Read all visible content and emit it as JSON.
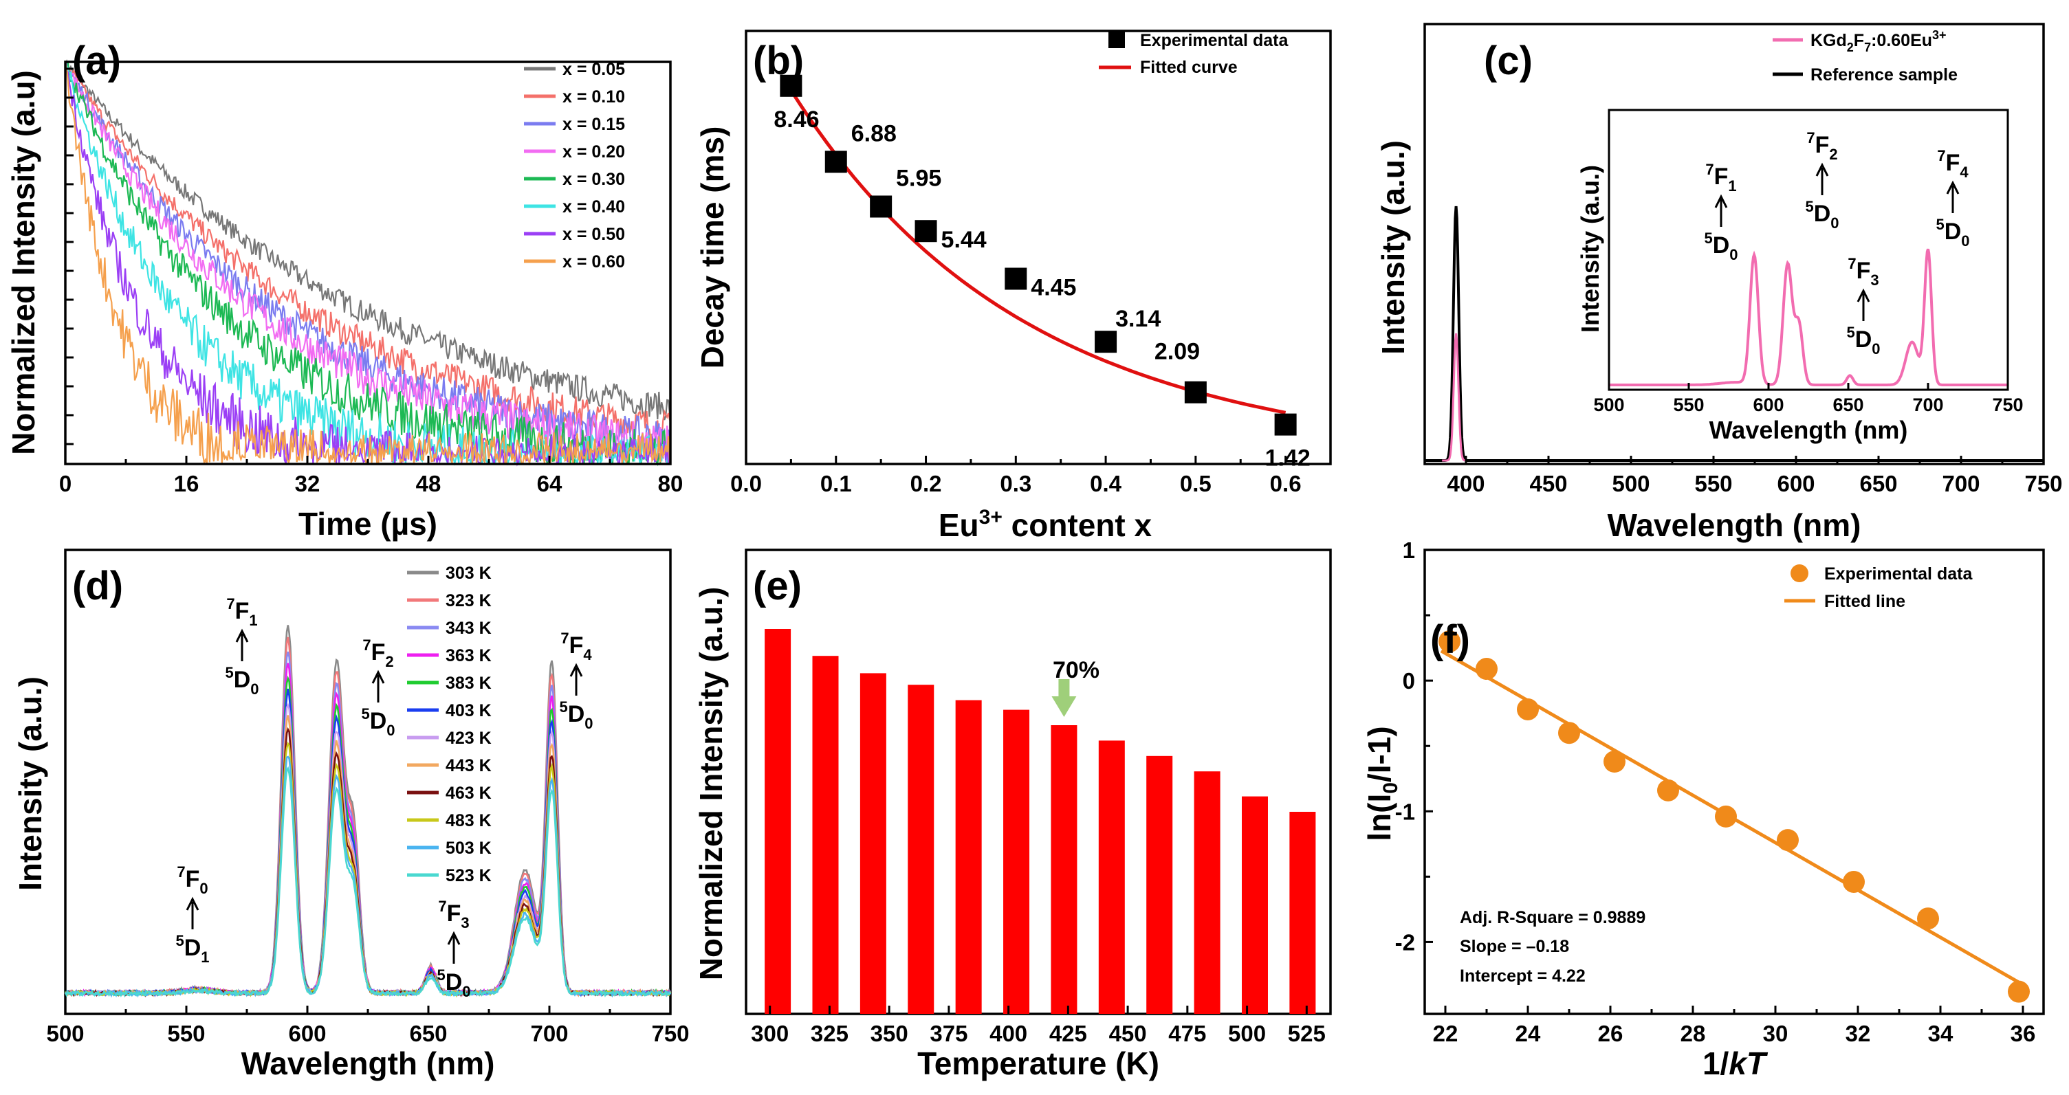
{
  "chart_data": [
    {
      "panel": "(a)",
      "type": "line",
      "xlabel": "Time (µs)",
      "ylabel": "Normalized Intensity (a.u)",
      "xlim": [
        0,
        80
      ],
      "xticks": [
        "0",
        "16",
        "32",
        "48",
        "64",
        "80"
      ],
      "series": [
        {
          "name": "x = 0.05",
          "color": "#777777",
          "decay_ms": 8.46
        },
        {
          "name": "x = 0.10",
          "color": "#f4706a",
          "decay_ms": 6.88
        },
        {
          "name": "x = 0.15",
          "color": "#7b7cf0",
          "decay_ms": 5.95
        },
        {
          "name": "x = 0.20",
          "color": "#f26cf2",
          "decay_ms": 5.44
        },
        {
          "name": "x = 0.30",
          "color": "#1db954",
          "decay_ms": 4.45
        },
        {
          "name": "x = 0.40",
          "color": "#3ee4e4",
          "decay_ms": 3.14
        },
        {
          "name": "x = 0.50",
          "color": "#9b3ff5",
          "decay_ms": 2.09
        },
        {
          "name": "x = 0.60",
          "color": "#f5a04d",
          "decay_ms": 1.42
        }
      ]
    },
    {
      "panel": "(b)",
      "type": "scatter",
      "xlabel": "Eu",
      "xlabel_sup": "3+",
      "xlabel_rest": " content x",
      "ylabel": "Decay time (ms)",
      "xlim": [
        0,
        0.65
      ],
      "ylim": [
        0.6,
        9.6
      ],
      "xticks": [
        "0.0",
        "0.1",
        "0.2",
        "0.3",
        "0.4",
        "0.5",
        "0.6"
      ],
      "x": [
        0.05,
        0.1,
        0.15,
        0.2,
        0.3,
        0.4,
        0.5,
        0.6
      ],
      "y": [
        8.46,
        6.88,
        5.95,
        5.44,
        4.45,
        3.14,
        2.09,
        1.42
      ],
      "labels": [
        "8.46",
        "6.88",
        "5.95",
        "5.44",
        "4.45",
        "3.14",
        "2.09",
        "1.42"
      ],
      "legend": [
        "Experimental data",
        "Fitted curve"
      ],
      "fit_color": "#e01010"
    },
    {
      "panel": "(c)",
      "type": "line",
      "xlabel": "Wavelength (nm)",
      "ylabel": "Intensity (a.u.)",
      "xlim": [
        375,
        750
      ],
      "xticks": [
        "400",
        "450",
        "500",
        "550",
        "600",
        "650",
        "700",
        "750"
      ],
      "legend": [
        "KGd2F7:0.60Eu3+",
        "Reference sample"
      ],
      "legend_parts": [
        "KGd",
        "2",
        "F",
        "7",
        ":0.60Eu",
        "3+"
      ],
      "main_peak_nm": 394,
      "inset": {
        "xlabel": "Wavelength (nm)",
        "ylabel": "Intensity (a.u.)",
        "xticks": [
          "500",
          "550",
          "600",
          "650",
          "700",
          "750"
        ],
        "peaks_nm": [
          591,
          612,
          652,
          701
        ],
        "transitions": [
          {
            "upper": "7",
            "upper_sym": "F",
            "upper_sub": "1",
            "lower": "5",
            "lower_sym": "D",
            "lower_sub": "0"
          },
          {
            "upper": "7",
            "upper_sym": "F",
            "upper_sub": "2",
            "lower": "5",
            "lower_sym": "D",
            "lower_sub": "0"
          },
          {
            "upper": "7",
            "upper_sym": "F",
            "upper_sub": "3",
            "lower": "5",
            "lower_sym": "D",
            "lower_sub": "0"
          },
          {
            "upper": "7",
            "upper_sym": "F",
            "upper_sub": "4",
            "lower": "5",
            "lower_sym": "D",
            "lower_sub": "0"
          }
        ]
      }
    },
    {
      "panel": "(d)",
      "type": "line",
      "xlabel": "Wavelength (nm)",
      "ylabel": "Intensity (a.u.)",
      "xlim": [
        500,
        750
      ],
      "xticks": [
        "500",
        "550",
        "600",
        "650",
        "700",
        "750"
      ],
      "series": [
        {
          "name": "303 K",
          "color": "#8a8a8a"
        },
        {
          "name": "323 K",
          "color": "#f2787a"
        },
        {
          "name": "343 K",
          "color": "#8a8af2"
        },
        {
          "name": "363 K",
          "color": "#ee1ff0"
        },
        {
          "name": "383 K",
          "color": "#1fcc30"
        },
        {
          "name": "403 K",
          "color": "#1a3ef0"
        },
        {
          "name": "423 K",
          "color": "#c89cf0"
        },
        {
          "name": "443 K",
          "color": "#f2a860"
        },
        {
          "name": "463 K",
          "color": "#7a1010"
        },
        {
          "name": "483 K",
          "color": "#c8c81a"
        },
        {
          "name": "503 K",
          "color": "#4ab4f0"
        },
        {
          "name": "523 K",
          "color": "#4ad8d0"
        }
      ],
      "transitions": [
        {
          "upper_sym": "F",
          "upper_sub": "0",
          "lower_sym": "D",
          "lower_sub": "1"
        },
        {
          "upper_sym": "F",
          "upper_sub": "1",
          "lower_sym": "D",
          "lower_sub": "0"
        },
        {
          "upper_sym": "F",
          "upper_sub": "2",
          "lower_sym": "D",
          "lower_sub": "0"
        },
        {
          "upper_sym": "F",
          "upper_sub": "3",
          "lower_sym": "D",
          "lower_sub": "0"
        },
        {
          "upper_sym": "F",
          "upper_sub": "4",
          "lower_sym": "D",
          "lower_sub": "0"
        }
      ],
      "sup_upper": "7",
      "sup_lower": "5"
    },
    {
      "panel": "(e)",
      "type": "bar",
      "xlabel": "Temperature (K)",
      "ylabel": "Normalized Intensity (a.u.)",
      "xticks": [
        "300",
        "325",
        "350",
        "375",
        "400",
        "425",
        "450",
        "475",
        "500",
        "525"
      ],
      "categories": [
        "303",
        "323",
        "343",
        "363",
        "383",
        "403",
        "423",
        "443",
        "463",
        "483",
        "503",
        "523"
      ],
      "values": [
        1.0,
        0.93,
        0.885,
        0.855,
        0.815,
        0.79,
        0.75,
        0.71,
        0.67,
        0.63,
        0.565,
        0.525
      ],
      "bar_color": "#ff0000",
      "annotation": "70%",
      "arrow_color": "#9fcf7a"
    },
    {
      "panel": "(f)",
      "type": "scatter",
      "xlabel": "1/kT",
      "xlabel_pre": "1/",
      "xlabel_italic": "kT",
      "ylabel": "ln(I0/I-1)",
      "ylabel_parts": [
        "ln(I",
        "0",
        "/I-1)"
      ],
      "xlim": [
        21.5,
        36.5
      ],
      "ylim": [
        -2.55,
        1.0
      ],
      "xticks": [
        "22",
        "24",
        "26",
        "28",
        "30",
        "32",
        "34",
        "36"
      ],
      "yticks": [
        "1",
        "0",
        "-1",
        "-2"
      ],
      "x": [
        22.1,
        23.0,
        24.0,
        25.0,
        26.1,
        27.4,
        28.8,
        30.3,
        31.9,
        33.7,
        35.9
      ],
      "y": [
        0.3,
        0.09,
        -0.22,
        -0.4,
        -0.62,
        -0.84,
        -1.04,
        -1.22,
        -1.54,
        -1.82,
        -2.38
      ],
      "legend": [
        "Experimental data",
        "Fitted line"
      ],
      "stats": [
        "Adj. R-Square = 0.9889",
        "Slope = –0.18",
        "Intercept = 4.22"
      ],
      "color": "#f08a1a"
    }
  ]
}
